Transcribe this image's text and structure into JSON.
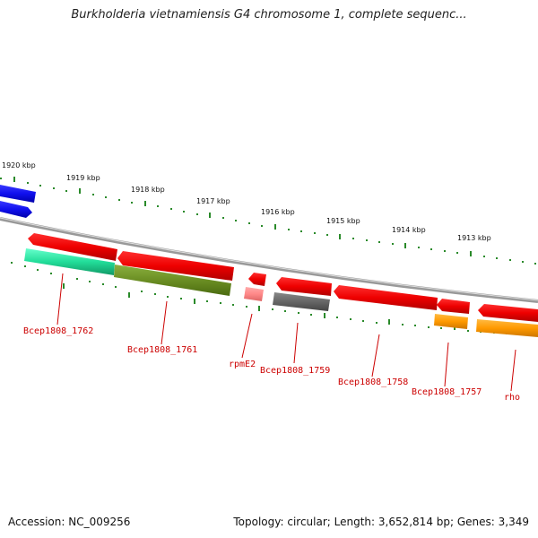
{
  "title": "Burkholderia vietnamiensis G4 chromosome 1, complete sequenc...",
  "accession": "Accession: NC_009256",
  "summary": "Topology: circular; Length: 3,652,814 bp; Genes: 3,349",
  "kbp_labels": [
    "1920 kbp",
    "1919 kbp",
    "1918 kbp",
    "1917 kbp",
    "1916 kbp",
    "1915 kbp",
    "1914 kbp",
    "1913 kbp"
  ],
  "gene_labels": [
    "Bcep1808_1762",
    "Bcep1808_1761",
    "rpmE2",
    "Bcep1808_1759",
    "Bcep1808_1758",
    "Bcep1808_1757",
    "rho"
  ],
  "colors": {
    "backbone": "#888888",
    "tick": "#2a8a2a",
    "red": "#ee0000",
    "blue": "#1010ee",
    "teal": "#22dd99",
    "olive": "#6b8e23",
    "pink": "#ff8888",
    "gray": "#666666",
    "orange": "#ff9900",
    "label": "#cc0000"
  }
}
